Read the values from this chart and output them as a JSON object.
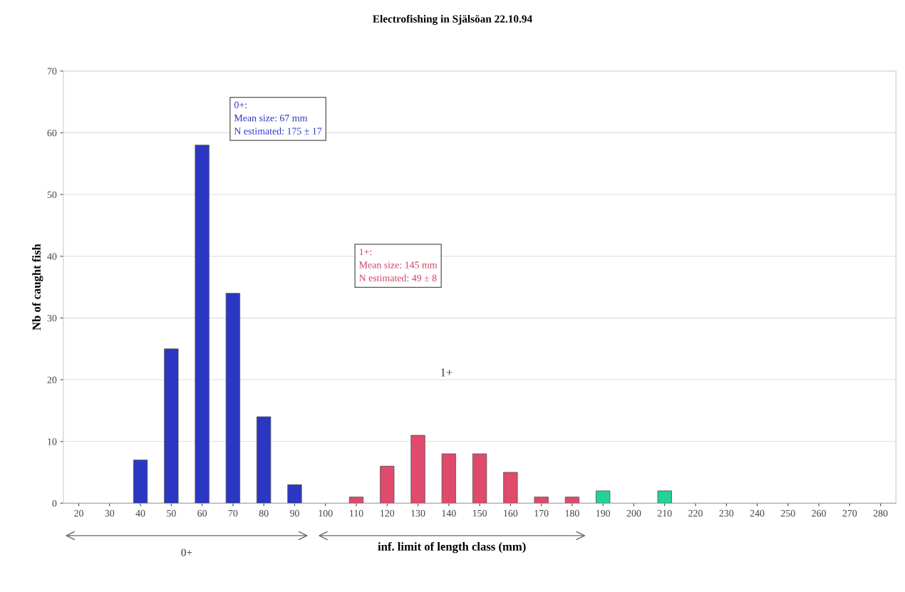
{
  "chart_data": {
    "type": "bar",
    "title": "Electrofishing in Själsöan 22.10.94",
    "xlabel": "inf. limit of length class (mm)",
    "ylabel": "Nb of caught fish",
    "categories": [
      "20",
      "30",
      "40",
      "50",
      "60",
      "70",
      "80",
      "90",
      "100",
      "110",
      "120",
      "130",
      "140",
      "150",
      "160",
      "170",
      "180",
      "190",
      "200",
      "210",
      "220",
      "230",
      "240",
      "250",
      "260",
      "270",
      "280"
    ],
    "values": [
      null,
      null,
      7,
      25,
      58,
      34,
      14,
      3,
      null,
      1,
      6,
      11,
      8,
      8,
      5,
      1,
      1,
      2,
      null,
      2,
      null,
      null,
      null,
      null,
      null,
      null,
      null
    ],
    "colors": [
      "#2b37c2",
      "#2b37c2",
      "#2b37c2",
      "#2b37c2",
      "#2b37c2",
      "#2b37c2",
      "#2b37c2",
      "#2b37c2",
      "#e04a6c",
      "#e04a6c",
      "#e04a6c",
      "#e04a6c",
      "#e04a6c",
      "#e04a6c",
      "#e04a6c",
      "#e04a6c",
      "#e04a6c",
      "#22d394",
      "#22d394",
      "#22d394",
      "#22d394",
      "#22d394",
      "#22d394",
      "#22d394",
      "#22d394",
      "#22d394",
      "#22d394"
    ],
    "ylim": [
      0,
      70
    ],
    "yticks": [
      0,
      10,
      20,
      30,
      40,
      50,
      60,
      70
    ],
    "grid": "y",
    "annotations": [
      "0+:\nMean size: 67 mm\nN estimated: 175 ± 17",
      "1+:\nMean size: 145 mm\nN estimated: 49 ± 8",
      "1+",
      "0+"
    ]
  }
}
